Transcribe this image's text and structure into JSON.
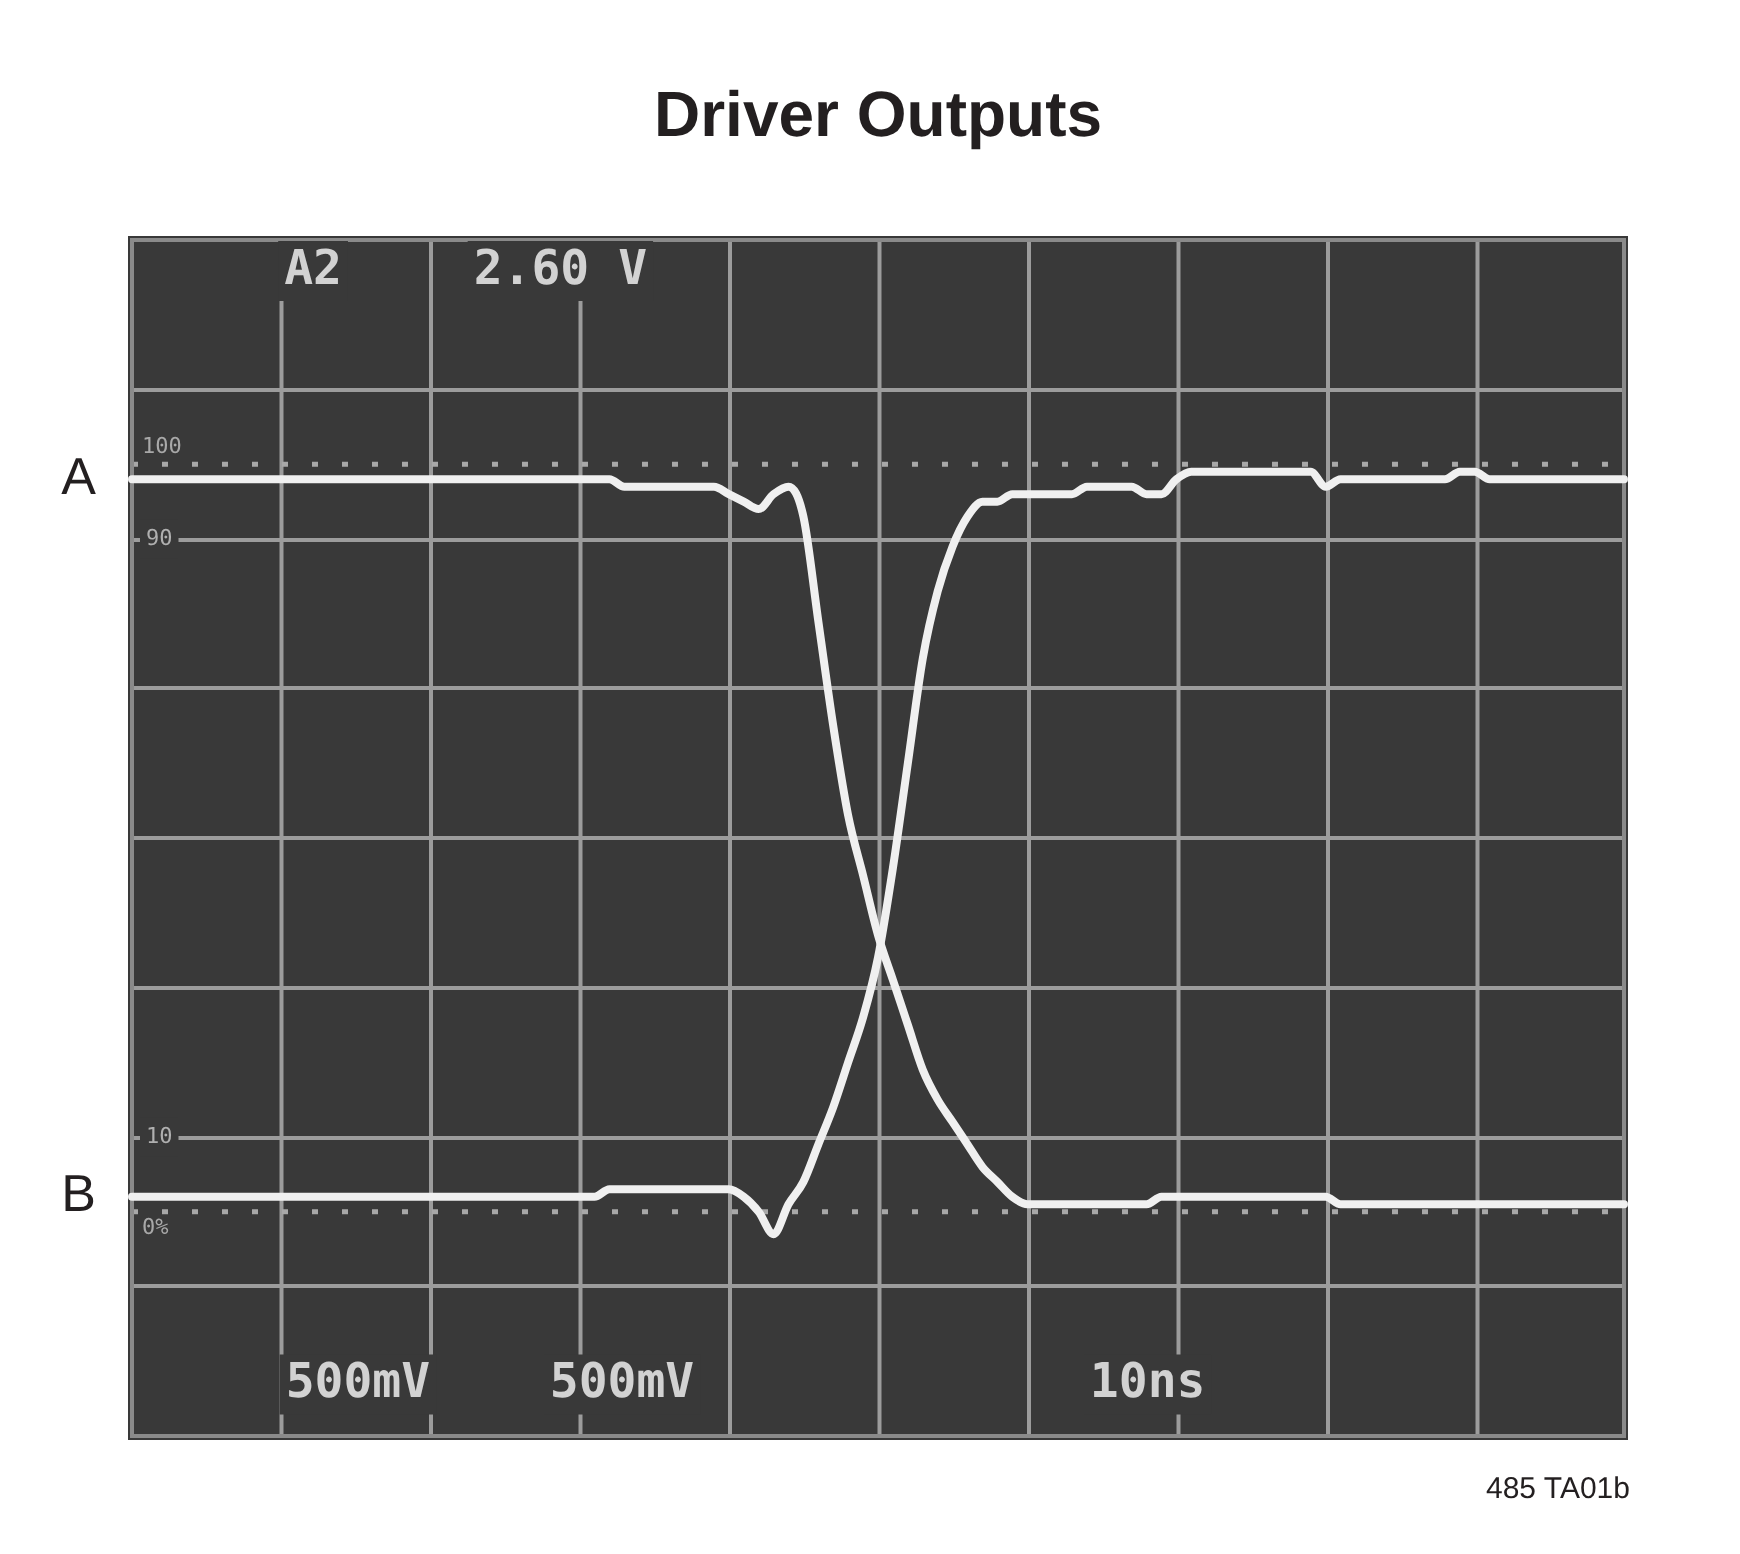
{
  "chart_data": {
    "type": "line",
    "title": "Driver Outputs",
    "categories": [
      null,
      null,
      null,
      null,
      null,
      null,
      null,
      null,
      null,
      null,
      null,
      null,
      null,
      null,
      null,
      null,
      null,
      null,
      null,
      null,
      null,
      null,
      null,
      null,
      null,
      null,
      null,
      null,
      null,
      null,
      null,
      null,
      null,
      null,
      null,
      null,
      null,
      null,
      null,
      null,
      null,
      null,
      null,
      null,
      null,
      null,
      null,
      null,
      null,
      null,
      null,
      null,
      null,
      null,
      null,
      null,
      null,
      null,
      null,
      null,
      null,
      null,
      null,
      null,
      null,
      null,
      null,
      null,
      null,
      null,
      null,
      null,
      null,
      null,
      null,
      null,
      null,
      null,
      null,
      null,
      null,
      null,
      null,
      null,
      null,
      null,
      null,
      null,
      null,
      null,
      null,
      null,
      null,
      null,
      null,
      null,
      null,
      null,
      null,
      null,
      null
    ],
    "series": [
      {
        "name": "A",
        "color": "#f0f0f0",
        "values": [
          98,
          98,
          98,
          98,
          98,
          98,
          98,
          98,
          98,
          98,
          98,
          98,
          98,
          98,
          98,
          98,
          98,
          98,
          98,
          98,
          98,
          98,
          98,
          98,
          98,
          98,
          98,
          98,
          98,
          98,
          98,
          98,
          98,
          97,
          97,
          97,
          97,
          97,
          97,
          97,
          96,
          95,
          94,
          96,
          97,
          93,
          79,
          65,
          53,
          45,
          37,
          31,
          25,
          19,
          15,
          12,
          9,
          6,
          4,
          2,
          1,
          1,
          1,
          1,
          1,
          1,
          1,
          1,
          1,
          2,
          2,
          2,
          2,
          2,
          2,
          2,
          2,
          2,
          2,
          2,
          2,
          1,
          1,
          1,
          1,
          1,
          1,
          1,
          1,
          1,
          1,
          1,
          1,
          1,
          1,
          1,
          1,
          1,
          1,
          1,
          1
        ]
      },
      {
        "name": "B",
        "color": "#f0f0f0",
        "values": [
          2,
          2,
          2,
          2,
          2,
          2,
          2,
          2,
          2,
          2,
          2,
          2,
          2,
          2,
          2,
          2,
          2,
          2,
          2,
          2,
          2,
          2,
          2,
          2,
          2,
          2,
          2,
          2,
          2,
          2,
          2,
          2,
          3,
          3,
          3,
          3,
          3,
          3,
          3,
          3,
          3,
          2,
          0,
          -3,
          1,
          4,
          9,
          14,
          20,
          26,
          34,
          46,
          60,
          74,
          83,
          89,
          93,
          95,
          95,
          96,
          96,
          96,
          96,
          96,
          97,
          97,
          97,
          97,
          96,
          96,
          98,
          99,
          99,
          99,
          99,
          99,
          99,
          99,
          99,
          99,
          97,
          98,
          98,
          98,
          98,
          98,
          98,
          98,
          98,
          99,
          99,
          98,
          98,
          98,
          98,
          98,
          98,
          98,
          98,
          98,
          98
        ]
      }
    ],
    "ylim": [
      -30,
      130
    ],
    "yticks": [
      {
        "value": -10,
        "label": null
      },
      10,
      {
        "value": 30,
        "label": null
      },
      {
        "value": 50,
        "label": null
      },
      {
        "value": 70,
        "label": null
      },
      90,
      {
        "value": 110,
        "label": null
      }
    ],
    "ref_lines": [
      {
        "axis": "y",
        "value": 100,
        "label": "100",
        "line_style": "dotted",
        "color": "#a8a8a8"
      },
      {
        "axis": "y",
        "value": 0,
        "label": "0%",
        "line_style": "dotted",
        "color": "#a8a8a8"
      }
    ],
    "grid": true,
    "tick_labels": "y",
    "annotations": [
      "A2",
      "2.60 V",
      "500mV",
      "500mV",
      "10ns",
      "485 TA01b"
    ]
  }
}
